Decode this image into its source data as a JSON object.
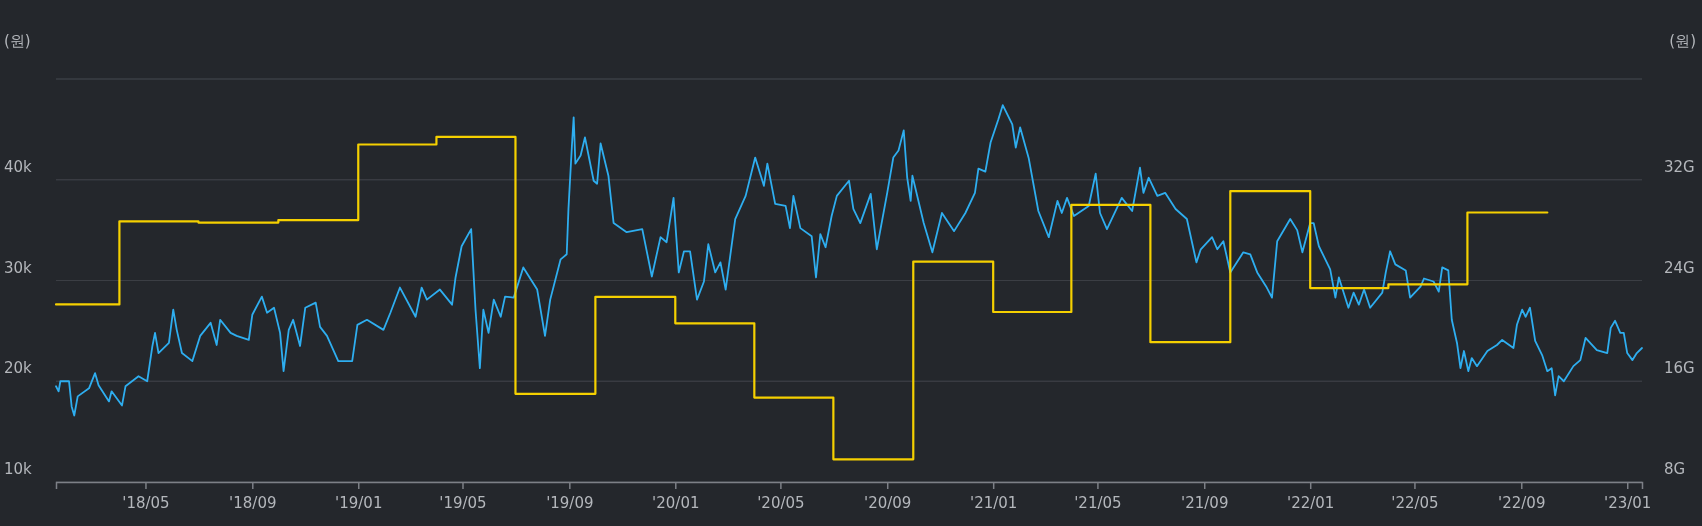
{
  "chart_data": {
    "type": "line",
    "ylabel": "(원)",
    "y2label": "(원)",
    "grid": "y",
    "xlim": [
      "2018-01-18",
      "2023-01-18"
    ],
    "xticks": [
      {
        "value": "2018-05-01",
        "label": "'18/05"
      },
      {
        "value": "2018-09-01",
        "label": "'18/09"
      },
      {
        "value": "2019-01-01",
        "label": "'19/01"
      },
      {
        "value": "2019-05-01",
        "label": "'19/05"
      },
      {
        "value": "2019-09-01",
        "label": "'19/09"
      },
      {
        "value": "2020-01-01",
        "label": "'20/01"
      },
      {
        "value": "2020-05-01",
        "label": "'20/05"
      },
      {
        "value": "2020-09-01",
        "label": "'20/09"
      },
      {
        "value": "2021-01-01",
        "label": "'21/01"
      },
      {
        "value": "2021-05-01",
        "label": "'21/05"
      },
      {
        "value": "2021-09-01",
        "label": "'21/09"
      },
      {
        "value": "2022-01-01",
        "label": "'22/01"
      },
      {
        "value": "2022-05-01",
        "label": "'22/05"
      },
      {
        "value": "2022-09-01",
        "label": "'22/09"
      },
      {
        "value": "2023-01-01",
        "label": "'23/01"
      }
    ],
    "ylim": [
      10,
      50
    ],
    "yticks": [
      {
        "value": 10,
        "label": "10k"
      },
      {
        "value": 20,
        "label": "20k"
      },
      {
        "value": 30,
        "label": "30k"
      },
      {
        "value": 40,
        "label": "40k"
      },
      {
        "value": 50,
        "label": null
      }
    ],
    "y2lim": [
      8,
      40
    ],
    "y2ticks": [
      {
        "value": 8,
        "label": "8G"
      },
      {
        "value": 16,
        "label": "16G"
      },
      {
        "value": 24,
        "label": "24G"
      },
      {
        "value": 32,
        "label": "32G"
      },
      {
        "value": 40,
        "label": null
      }
    ],
    "series": [
      {
        "axis": "y",
        "color": "#2eaef0",
        "x": [
          "2018-01-18",
          "2018-01-21",
          "2018-01-23",
          "2018-02-02",
          "2018-02-05",
          "2018-02-08",
          "2018-02-12",
          "2018-02-25",
          "2018-03-04",
          "2018-03-08",
          "2018-03-20",
          "2018-03-23",
          "2018-04-04",
          "2018-04-08",
          "2018-04-23",
          "2018-05-03",
          "2018-05-09",
          "2018-05-12",
          "2018-05-16",
          "2018-05-28",
          "2018-06-02",
          "2018-06-06",
          "2018-06-12",
          "2018-06-24",
          "2018-07-03",
          "2018-07-15",
          "2018-07-22",
          "2018-07-26",
          "2018-08-07",
          "2018-08-14",
          "2018-08-28",
          "2018-09-01",
          "2018-09-12",
          "2018-09-18",
          "2018-09-26",
          "2018-10-03",
          "2018-10-07",
          "2018-10-13",
          "2018-10-18",
          "2018-10-26",
          "2018-11-01",
          "2018-11-13",
          "2018-11-18",
          "2018-11-26",
          "2018-12-09",
          "2018-12-25",
          "2018-12-31",
          "2019-01-11",
          "2019-01-30",
          "2019-02-07",
          "2019-02-18",
          "2019-03-08",
          "2019-03-15",
          "2019-03-21",
          "2019-04-05",
          "2019-04-19",
          "2019-04-23",
          "2019-04-30",
          "2019-05-11",
          "2019-05-16",
          "2019-05-21",
          "2019-05-25",
          "2019-05-31",
          "2019-06-06",
          "2019-06-14",
          "2019-06-19",
          "2019-06-29",
          "2019-07-10",
          "2019-07-26",
          "2019-08-04",
          "2019-08-10",
          "2019-08-22",
          "2019-08-29",
          "2019-08-31",
          "2019-09-04",
          "2019-09-06",
          "2019-09-08",
          "2019-09-14",
          "2019-09-19",
          "2019-09-29",
          "2019-10-03",
          "2019-10-07",
          "2019-10-16",
          "2019-10-22",
          "2019-11-06",
          "2019-11-24",
          "2019-12-05",
          "2019-12-15",
          "2019-12-22",
          "2019-12-30",
          "2020-01-05",
          "2020-01-11",
          "2020-01-18",
          "2020-01-26",
          "2020-02-03",
          "2020-02-08",
          "2020-02-16",
          "2020-02-22",
          "2020-02-28",
          "2020-03-10",
          "2020-03-22",
          "2020-04-02",
          "2020-04-12",
          "2020-04-16",
          "2020-04-25",
          "2020-05-07",
          "2020-05-12",
          "2020-05-16",
          "2020-05-24",
          "2020-06-06",
          "2020-06-11",
          "2020-06-16",
          "2020-06-22",
          "2020-06-29",
          "2020-07-05",
          "2020-07-19",
          "2020-07-24",
          "2020-08-01",
          "2020-08-13",
          "2020-08-20",
          "2020-09-01",
          "2020-09-08",
          "2020-09-14",
          "2020-09-20",
          "2020-09-24",
          "2020-09-28",
          "2020-09-30",
          "2020-10-13",
          "2020-10-23",
          "2020-11-03",
          "2020-11-17",
          "2020-11-30",
          "2020-12-11",
          "2020-12-15",
          "2020-12-23",
          "2020-12-29",
          "2021-01-07",
          "2021-01-12",
          "2021-01-23",
          "2021-01-27",
          "2021-02-01",
          "2021-02-11",
          "2021-02-22",
          "2021-03-06",
          "2021-03-16",
          "2021-03-21",
          "2021-03-27",
          "2021-04-04",
          "2021-04-21",
          "2021-04-29",
          "2021-05-04",
          "2021-05-12",
          "2021-05-29",
          "2021-06-10",
          "2021-06-19",
          "2021-06-23",
          "2021-06-29",
          "2021-07-09",
          "2021-07-18",
          "2021-07-30",
          "2021-08-12",
          "2021-08-23",
          "2021-08-28",
          "2021-09-10",
          "2021-09-16",
          "2021-09-23",
          "2021-10-01",
          "2021-10-16",
          "2021-10-24",
          "2021-11-01",
          "2021-11-12",
          "2021-11-18",
          "2021-11-24",
          "2021-12-09",
          "2021-12-17",
          "2021-12-23",
          "2022-01-01",
          "2022-01-05",
          "2022-01-11",
          "2022-01-24",
          "2022-01-30",
          "2022-02-03",
          "2022-02-14",
          "2022-02-20",
          "2022-02-26",
          "2022-03-04",
          "2022-03-11",
          "2022-03-25",
          "2022-03-29",
          "2022-04-03",
          "2022-04-09",
          "2022-04-21",
          "2022-04-26",
          "2022-05-08",
          "2022-05-12",
          "2022-05-23",
          "2022-05-29",
          "2022-06-02",
          "2022-06-09",
          "2022-06-13",
          "2022-06-19",
          "2022-06-23",
          "2022-06-27",
          "2022-07-02",
          "2022-07-06",
          "2022-07-12",
          "2022-07-24",
          "2022-08-04",
          "2022-08-10",
          "2022-08-23",
          "2022-08-27",
          "2022-09-02",
          "2022-09-06",
          "2022-09-11",
          "2022-09-17",
          "2022-09-25",
          "2022-10-01",
          "2022-10-06",
          "2022-10-10",
          "2022-10-14",
          "2022-10-20",
          "2022-10-31",
          "2022-11-08",
          "2022-11-14",
          "2022-11-27",
          "2022-12-09",
          "2022-12-13",
          "2022-12-18",
          "2022-12-24",
          "2022-12-28",
          "2023-01-01",
          "2023-01-07",
          "2023-01-12",
          "2023-01-18"
        ],
        "values": [
          19.5,
          19.0,
          20.0,
          20.0,
          17.5,
          16.6,
          18.5,
          19.3,
          20.8,
          19.6,
          18.0,
          19.0,
          17.6,
          19.5,
          20.5,
          20.0,
          23.5,
          24.8,
          22.8,
          23.8,
          27.1,
          25.1,
          22.8,
          22.0,
          24.5,
          25.8,
          23.6,
          26.1,
          24.8,
          24.5,
          24.1,
          26.6,
          28.4,
          26.8,
          27.3,
          24.8,
          21.0,
          25.1,
          26.1,
          23.5,
          27.3,
          27.8,
          25.4,
          24.5,
          22.0,
          22.0,
          25.6,
          26.1,
          25.1,
          26.8,
          29.3,
          26.4,
          29.3,
          28.1,
          29.1,
          27.6,
          30.3,
          33.4,
          35.1,
          27.1,
          21.3,
          27.1,
          24.8,
          28.1,
          26.4,
          28.4,
          28.3,
          31.3,
          29.1,
          24.5,
          28.1,
          32.1,
          32.6,
          37.1,
          43.4,
          46.2,
          41.6,
          42.4,
          44.2,
          39.9,
          39.6,
          43.6,
          40.4,
          35.7,
          34.8,
          35.1,
          30.4,
          34.3,
          33.8,
          38.2,
          30.8,
          32.9,
          32.9,
          28.1,
          29.9,
          33.6,
          30.8,
          31.8,
          29.1,
          36.1,
          38.4,
          42.2,
          39.4,
          41.6,
          37.6,
          37.4,
          35.2,
          38.4,
          35.2,
          34.4,
          30.3,
          34.6,
          33.3,
          36.4,
          38.4,
          39.9,
          37.1,
          35.7,
          38.6,
          33.1,
          38.7,
          42.2,
          42.9,
          44.9,
          40.2,
          37.9,
          40.4,
          35.7,
          32.8,
          36.7,
          34.9,
          36.7,
          38.7,
          41.1,
          40.8,
          43.7,
          46.0,
          47.4,
          45.5,
          43.2,
          45.2,
          42.1,
          36.9,
          34.3,
          37.9,
          36.7,
          38.2,
          36.4,
          37.4,
          40.6,
          36.7,
          35.1,
          38.2,
          36.9,
          41.2,
          38.7,
          40.2,
          38.4,
          38.7,
          37.1,
          36.1,
          31.8,
          33.1,
          34.3,
          33.1,
          33.9,
          30.8,
          32.8,
          32.6,
          30.8,
          29.3,
          28.3,
          33.9,
          36.1,
          35.0,
          32.8,
          35.7,
          35.7,
          33.4,
          31.1,
          28.3,
          30.3,
          27.3,
          28.8,
          27.6,
          29.1,
          27.3,
          28.8,
          30.8,
          32.9,
          31.6,
          31.0,
          28.3,
          29.4,
          30.2,
          29.9,
          28.9,
          31.3,
          31.0,
          26.1,
          23.8,
          21.3,
          23.0,
          21.0,
          22.3,
          21.5,
          23.0,
          23.6,
          24.1,
          23.3,
          25.6,
          27.1,
          26.4,
          27.3,
          24.0,
          22.6,
          21.0,
          21.3,
          18.6,
          20.5,
          20.0,
          21.5,
          22.1,
          24.3,
          23.1,
          22.8,
          25.3,
          26.0,
          24.8,
          24.8,
          22.8,
          22.1,
          22.8,
          23.3
        ]
      },
      {
        "type": "step",
        "axis": "y2",
        "color": "#f5d000",
        "x": [
          "2018-01-18",
          "2018-04-01",
          "2018-07-01",
          "2018-10-01",
          "2019-01-01",
          "2019-04-01",
          "2019-07-01",
          "2019-10-01",
          "2020-01-01",
          "2020-04-01",
          "2020-07-01",
          "2020-10-01",
          "2021-01-01",
          "2021-04-01",
          "2021-07-01",
          "2021-10-01",
          "2022-01-01",
          "2022-04-01",
          "2022-07-01",
          "2022-10-01"
        ],
        "values": [
          22.1,
          28.7,
          28.6,
          28.8,
          34.8,
          35.4,
          15.0,
          22.7,
          20.6,
          14.7,
          9.8,
          25.5,
          21.5,
          30.0,
          19.1,
          31.1,
          23.4,
          23.7,
          29.4,
          29.4
        ]
      }
    ]
  }
}
